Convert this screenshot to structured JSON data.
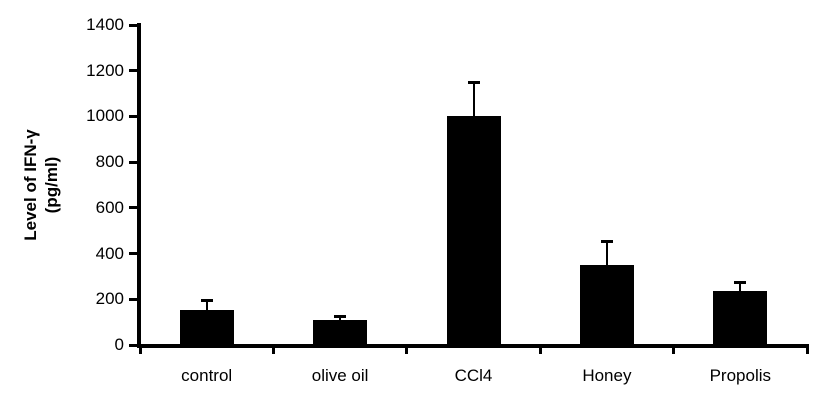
{
  "chart_data": {
    "type": "bar",
    "title": "",
    "ylabel": "Level of IFN-γ (pg/ml)",
    "ylabel_line1": "Level of IFN-γ",
    "ylabel_line2": "(pg/ml)",
    "xlabel": "",
    "categories": [
      "control",
      "olive oil",
      "CCl4",
      "Honey",
      "Propolis"
    ],
    "values": [
      155,
      110,
      1000,
      350,
      235
    ],
    "errors": [
      40,
      15,
      150,
      105,
      40
    ],
    "ylim": [
      0,
      1400
    ],
    "ytick_step": 200,
    "ytick_labels": [
      "0",
      "200",
      "400",
      "600",
      "800",
      "1000",
      "1200",
      "1400"
    ],
    "bar_color": "#000000",
    "axis_color": "#000000",
    "background_color": "#ffffff",
    "grid": false,
    "legend": false,
    "error_bars": "upper only"
  }
}
